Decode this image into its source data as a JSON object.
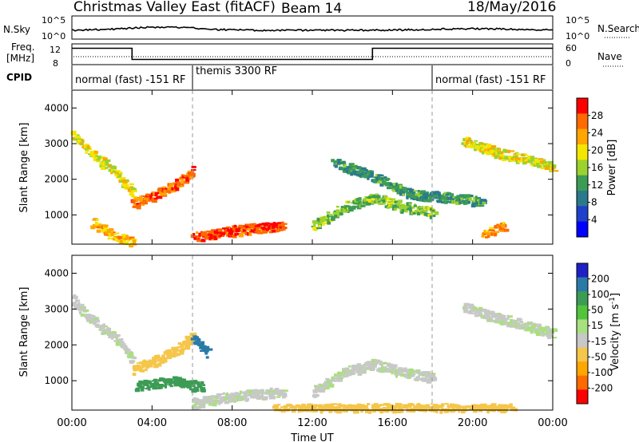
{
  "header": {
    "title": "Christmas Valley East (fitACF)",
    "beam": "Beam 14",
    "date": "18/May/2016"
  },
  "noise_panel": {
    "left_label": "N.Sky",
    "left_ticks": [
      "10^5",
      "10^0"
    ],
    "right_ticks": [
      "10^5",
      "10^0"
    ],
    "right_label": "N.Search"
  },
  "freq_panel": {
    "left_label_line1": "Freq.",
    "left_label_line2": "[MHz]",
    "left_ticks": [
      "12",
      "8"
    ],
    "right_ticks": [
      "60",
      "0"
    ],
    "right_label": "Nave"
  },
  "cpid": {
    "label": "CPID",
    "segments": [
      "normal (fast) -151 RF",
      "themis 3300 RF",
      "normal (fast) -151 RF"
    ]
  },
  "power_panel": {
    "ylabel": "Slant Range [km]",
    "yticks": [
      "4000",
      "3000",
      "2000",
      "1000"
    ],
    "colorbar_label": "Power [dB]",
    "colorbar_ticks": [
      "28",
      "24",
      "20",
      "16",
      "12",
      "8",
      "4"
    ],
    "colorbar_colors": [
      "#ff0000",
      "#ff6a00",
      "#ffa600",
      "#f3e600",
      "#9bd22e",
      "#3c9c55",
      "#2a7a8c",
      "#1f40c8",
      "#0000ff"
    ]
  },
  "velocity_panel": {
    "ylabel": "Slant Range [km]",
    "yticks": [
      "4000",
      "3000",
      "2000",
      "1000"
    ],
    "colorbar_label": "Velocity [m s",
    "colorbar_label_sup": "-1",
    "colorbar_label_end": "]",
    "colorbar_ticks": [
      "200",
      "100",
      "50",
      "15",
      "-15",
      "-50",
      "-100",
      "-200"
    ],
    "colorbar_colors": [
      "#1f1fc8",
      "#2a7aa8",
      "#3c9c55",
      "#52c43c",
      "#a9e07f",
      "#c8c8c8",
      "#f5c64a",
      "#ffa600",
      "#ff6a00",
      "#ff0000"
    ]
  },
  "time_axis": {
    "ticks": [
      "00:00",
      "04:00",
      "08:00",
      "12:00",
      "16:00",
      "20:00",
      "00:00"
    ],
    "label": "Time UT"
  },
  "chart_data": {
    "type": "heatmap",
    "title": "Christmas Valley East (fitACF) Beam 14",
    "xlabel": "Time UT",
    "ylabel": "Slant Range [km]",
    "x_range_hours": [
      0,
      24
    ],
    "y_range_km": [
      180,
      4500
    ],
    "cpid_switch_hours": [
      6.0,
      18.0
    ],
    "frequency_mhz": {
      "segments": [
        {
          "from": 0,
          "to": 3.0,
          "value": 11.5
        },
        {
          "from": 3.0,
          "to": 15.0,
          "value": 8.7
        },
        {
          "from": 15.0,
          "to": 24,
          "value": 11.5
        }
      ]
    },
    "power_echo_bands": [
      {
        "t": [
          0.0,
          1.0,
          2.2,
          3.0
        ],
        "r": [
          3300,
          2700,
          2200,
          1600
        ],
        "power_db": 18
      },
      {
        "t": [
          3.0,
          4.0,
          5.2,
          6.0
        ],
        "r": [
          1350,
          1550,
          1900,
          2250
        ],
        "power_db": 26
      },
      {
        "t": [
          1.0,
          2.0,
          3.0
        ],
        "r": [
          800,
          450,
          250
        ],
        "power_db": 22
      },
      {
        "t": [
          6.0,
          7.5,
          9.0,
          10.5
        ],
        "r": [
          400,
          550,
          650,
          700
        ],
        "power_db": 28
      },
      {
        "t": [
          12.0,
          13.5,
          15.0,
          16.5,
          18.0
        ],
        "r": [
          700,
          1250,
          1500,
          1250,
          1100
        ],
        "power_db": 14
      },
      {
        "t": [
          13.0,
          15.0,
          17.0,
          19.0,
          20.5
        ],
        "r": [
          2500,
          2100,
          1600,
          1500,
          1400
        ],
        "power_db": 10
      },
      {
        "t": [
          19.5,
          21.0,
          22.5,
          24.0
        ],
        "r": [
          3100,
          2800,
          2600,
          2350
        ],
        "power_db": 18
      },
      {
        "t": [
          20.5,
          21.5
        ],
        "r": [
          500,
          700
        ],
        "power_db": 24
      }
    ],
    "velocity_echo_bands": [
      {
        "t": [
          0.0,
          1.0,
          2.2,
          3.0
        ],
        "r": [
          3300,
          2700,
          2200,
          1600
        ],
        "velocity_mps": 0
      },
      {
        "t": [
          3.0,
          4.0,
          5.2,
          6.0
        ],
        "r": [
          1350,
          1550,
          1900,
          2250
        ],
        "velocity_mps": -30
      },
      {
        "t": [
          6.0,
          6.7
        ],
        "r": [
          2200,
          1800
        ],
        "velocity_mps": 180
      },
      {
        "t": [
          3.2,
          5.0,
          6.5
        ],
        "r": [
          900,
          1000,
          850
        ],
        "velocity_mps": 60
      },
      {
        "t": [
          6.0,
          7.5,
          9.0,
          10.5
        ],
        "r": [
          400,
          550,
          650,
          700
        ],
        "velocity_mps": 0
      },
      {
        "t": [
          10.0,
          14.0,
          18.0,
          22.0
        ],
        "r": [
          230,
          250,
          260,
          240
        ],
        "velocity_mps": -40
      },
      {
        "t": [
          12.0,
          13.5,
          15.0,
          16.5,
          18.0
        ],
        "r": [
          700,
          1250,
          1500,
          1250,
          1100
        ],
        "velocity_mps": 0
      },
      {
        "t": [
          19.5,
          21.0,
          22.5,
          24.0
        ],
        "r": [
          3100,
          2800,
          2600,
          2350
        ],
        "velocity_mps": 0
      }
    ]
  }
}
